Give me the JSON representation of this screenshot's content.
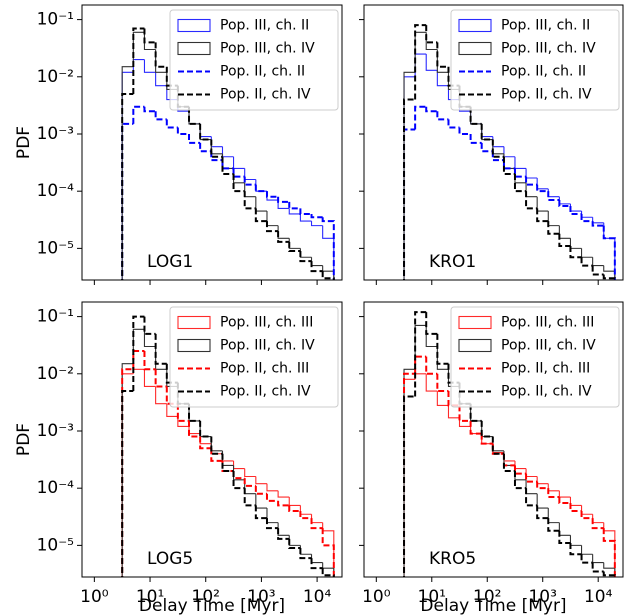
{
  "chart_data": [
    {
      "type": "histogram",
      "annotation": "LOG1",
      "ylabel": "PDF",
      "log_x": true,
      "log_y": true,
      "legend": "upper right",
      "bins": [
        3.16,
        5.01,
        7.94,
        12.6,
        20.0,
        31.6,
        50.1,
        79.4,
        126,
        200,
        316,
        501,
        794,
        1259,
        1995,
        3162,
        5012,
        7943,
        12589,
        19953
      ],
      "xlim": [
        0.6,
        28000
      ],
      "ylim": [
        2.8e-06,
        0.18
      ],
      "xticks": [
        1,
        10,
        100,
        1000,
        10000
      ],
      "yticks": [
        {
          "value": 0.1,
          "label": "10⁻¹"
        },
        {
          "value": 0.01,
          "label": "10⁻²"
        },
        {
          "value": 0.001,
          "label": "10⁻³"
        },
        {
          "value": 0.0001,
          "label": "10⁻⁴"
        },
        {
          "value": 1e-05,
          "label": "10⁻⁵"
        }
      ],
      "series": [
        {
          "name": "Pop. III, ch. II",
          "color": "#2a2aff",
          "linestyle": "solid",
          "values": [
            0.012,
            0.02,
            0.012,
            0.007,
            0.004,
            0.0025,
            0.0015,
            0.0009,
            0.0006,
            0.0004,
            0.00025,
            0.00016,
            0.0001,
            7e-05,
            5e-05,
            4e-05,
            3e-05,
            2.5e-05,
            1.5e-05
          ]
        },
        {
          "name": "Pop. III, ch. IV",
          "color": "#333333",
          "linestyle": "solid",
          "values": [
            0.015,
            0.06,
            0.03,
            0.012,
            0.006,
            0.003,
            0.0015,
            0.0008,
            0.00045,
            0.00025,
            0.00014,
            8e-05,
            4.5e-05,
            2.5e-05,
            1.5e-05,
            1e-05,
            7e-06,
            5e-06,
            4e-06
          ]
        },
        {
          "name": "Pop. II, ch. II",
          "color": "#0000ff",
          "linestyle": "dashed",
          "values": [
            0.0015,
            0.003,
            0.0025,
            0.0018,
            0.0013,
            0.001,
            0.0007,
            0.0005,
            0.00035,
            0.00025,
            0.00018,
            0.00013,
            0.0001,
            8e-05,
            6.5e-05,
            5e-05,
            4e-05,
            3.5e-05,
            3e-05
          ]
        },
        {
          "name": "Pop. II, ch. IV",
          "color": "#000000",
          "linestyle": "dashed",
          "values": [
            0.005,
            0.07,
            0.04,
            0.015,
            0.007,
            0.003,
            0.0015,
            0.0008,
            0.0004,
            0.0002,
            0.0001,
            5e-05,
            3e-05,
            2e-05,
            1.3e-05,
            9e-06,
            6e-06,
            4e-06,
            3e-06
          ]
        }
      ]
    },
    {
      "type": "histogram",
      "annotation": "KRO1",
      "log_x": true,
      "log_y": true,
      "legend": "upper right",
      "bins": [
        3.16,
        5.01,
        7.94,
        12.6,
        20.0,
        31.6,
        50.1,
        79.4,
        126,
        200,
        316,
        501,
        794,
        1259,
        1995,
        3162,
        5012,
        7943,
        12589,
        19953
      ],
      "xlim": [
        0.6,
        28000
      ],
      "ylim": [
        2.8e-06,
        0.18
      ],
      "xticks": [
        1,
        10,
        100,
        1000,
        10000
      ],
      "yticks": [
        0.1,
        0.01,
        0.001,
        0.0001,
        1e-05
      ],
      "series": [
        {
          "name": "Pop. III, ch. II",
          "color": "#2a2aff",
          "linestyle": "solid",
          "values": [
            0.01,
            0.025,
            0.013,
            0.007,
            0.004,
            0.0025,
            0.0015,
            0.0009,
            0.0006,
            0.0004,
            0.00025,
            0.00017,
            0.00011,
            8e-05,
            6e-05,
            4.5e-05,
            3.5e-05,
            2.8e-05,
            1.5e-05
          ]
        },
        {
          "name": "Pop. III, ch. IV",
          "color": "#333333",
          "linestyle": "solid",
          "values": [
            0.012,
            0.06,
            0.03,
            0.012,
            0.006,
            0.003,
            0.0015,
            0.0008,
            0.00045,
            0.00025,
            0.00014,
            8e-05,
            4.5e-05,
            2.5e-05,
            1.5e-05,
            1e-05,
            7e-06,
            5e-06,
            4e-06
          ]
        },
        {
          "name": "Pop. II, ch. II",
          "color": "#0000ff",
          "linestyle": "dashed",
          "values": [
            0.0012,
            0.003,
            0.0025,
            0.0018,
            0.0013,
            0.001,
            0.0007,
            0.0005,
            0.00035,
            0.00025,
            0.00018,
            0.00013,
            0.0001,
            7e-05,
            5.5e-05,
            4e-05,
            3e-05,
            2.5e-05,
            1.5e-05
          ]
        },
        {
          "name": "Pop. II, ch. IV",
          "color": "#000000",
          "linestyle": "dashed",
          "values": [
            0.004,
            0.08,
            0.04,
            0.015,
            0.007,
            0.003,
            0.0015,
            0.0008,
            0.0004,
            0.0002,
            0.0001,
            5e-05,
            3e-05,
            1.8e-05,
            1.1e-05,
            7e-06,
            5e-06,
            3.5e-06,
            3e-06
          ]
        }
      ]
    },
    {
      "type": "histogram",
      "annotation": "LOG5",
      "ylabel": "PDF",
      "xlabel": "Delay Time [Myr]",
      "log_x": true,
      "log_y": true,
      "legend": "upper right",
      "bins": [
        3.16,
        5.01,
        7.94,
        12.6,
        20.0,
        31.6,
        50.1,
        79.4,
        126,
        200,
        316,
        501,
        794,
        1259,
        1995,
        3162,
        5012,
        7943,
        12589,
        19953
      ],
      "xlim": [
        0.6,
        28000
      ],
      "ylim": [
        2.8e-06,
        0.18
      ],
      "xticks": [
        {
          "value": 1,
          "label": "10⁰"
        },
        {
          "value": 10,
          "label": "10¹"
        },
        {
          "value": 100,
          "label": "10²"
        },
        {
          "value": 1000,
          "label": "10³"
        },
        {
          "value": 10000,
          "label": "10⁴"
        }
      ],
      "yticks": [
        {
          "value": 0.1,
          "label": "10⁻¹"
        },
        {
          "value": 0.01,
          "label": "10⁻²"
        },
        {
          "value": 0.001,
          "label": "10⁻³"
        },
        {
          "value": 0.0001,
          "label": "10⁻⁴"
        },
        {
          "value": 1e-05,
          "label": "10⁻⁵"
        }
      ],
      "series": [
        {
          "name": "Pop. III, ch. III",
          "color": "#ff2a2a",
          "linestyle": "solid",
          "values": [
            0.01,
            0.012,
            0.006,
            0.003,
            0.0018,
            0.0012,
            0.0009,
            0.0006,
            0.0004,
            0.0003,
            0.00022,
            0.00016,
            0.00012,
            9e-05,
            7e-05,
            5e-05,
            3.5e-05,
            2.5e-05,
            1.8e-05
          ]
        },
        {
          "name": "Pop. III, ch. IV",
          "color": "#333333",
          "linestyle": "solid",
          "values": [
            0.015,
            0.06,
            0.03,
            0.012,
            0.006,
            0.003,
            0.0015,
            0.0008,
            0.00045,
            0.00025,
            0.00014,
            8e-05,
            4.5e-05,
            2.5e-05,
            1.5e-05,
            1e-05,
            7e-06,
            5e-06,
            4e-06
          ]
        },
        {
          "name": "Pop. II, ch. III",
          "color": "#ff0000",
          "linestyle": "dashed",
          "values": [
            0.012,
            0.025,
            0.012,
            0.006,
            0.003,
            0.0015,
            0.0008,
            0.0005,
            0.0003,
            0.0002,
            0.00015,
            0.00011,
            8e-05,
            6e-05,
            5e-05,
            4e-05,
            3e-05,
            2e-05,
            1e-05
          ]
        },
        {
          "name": "Pop. II, ch. IV",
          "color": "#000000",
          "linestyle": "dashed",
          "values": [
            0.005,
            0.1,
            0.05,
            0.015,
            0.007,
            0.003,
            0.0015,
            0.0008,
            0.0004,
            0.0002,
            0.0001,
            5e-05,
            3e-05,
            2e-05,
            1.3e-05,
            9e-06,
            6e-06,
            4e-06,
            3e-06
          ]
        }
      ]
    },
    {
      "type": "histogram",
      "annotation": "KRO5",
      "xlabel": "Delay Time [Myr]",
      "log_x": true,
      "log_y": true,
      "legend": "upper right",
      "bins": [
        3.16,
        5.01,
        7.94,
        12.6,
        20.0,
        31.6,
        50.1,
        79.4,
        126,
        200,
        316,
        501,
        794,
        1259,
        1995,
        3162,
        5012,
        7943,
        12589,
        19953
      ],
      "xlim": [
        0.6,
        28000
      ],
      "ylim": [
        2.8e-06,
        0.18
      ],
      "xticks": [
        {
          "value": 1,
          "label": "10⁰"
        },
        {
          "value": 10,
          "label": "10¹"
        },
        {
          "value": 100,
          "label": "10²"
        },
        {
          "value": 1000,
          "label": "10³"
        },
        {
          "value": 10000,
          "label": "10⁴"
        }
      ],
      "yticks": [
        0.1,
        0.01,
        0.001,
        0.0001,
        1e-05
      ],
      "series": [
        {
          "name": "Pop. III, ch. III",
          "color": "#ff2a2a",
          "linestyle": "solid",
          "values": [
            0.008,
            0.01,
            0.005,
            0.0028,
            0.0017,
            0.0012,
            0.0009,
            0.0006,
            0.00042,
            0.0003,
            0.00022,
            0.00016,
            0.00012,
            9e-05,
            7e-05,
            5e-05,
            3.5e-05,
            2.5e-05,
            1.8e-05
          ]
        },
        {
          "name": "Pop. III, ch. IV",
          "color": "#333333",
          "linestyle": "solid",
          "values": [
            0.012,
            0.07,
            0.03,
            0.012,
            0.006,
            0.003,
            0.0015,
            0.0008,
            0.00045,
            0.00025,
            0.00014,
            8e-05,
            4.5e-05,
            2.5e-05,
            1.5e-05,
            1e-05,
            7e-06,
            5e-06,
            4e-06
          ]
        },
        {
          "name": "Pop. II, ch. III",
          "color": "#ff0000",
          "linestyle": "dashed",
          "values": [
            0.01,
            0.02,
            0.01,
            0.005,
            0.0028,
            0.0015,
            0.0009,
            0.0006,
            0.0004,
            0.00025,
            0.00018,
            0.00013,
            0.0001,
            7e-05,
            5.5e-05,
            4e-05,
            3e-05,
            2e-05,
            1.2e-05
          ]
        },
        {
          "name": "Pop. II, ch. IV",
          "color": "#000000",
          "linestyle": "dashed",
          "values": [
            0.004,
            0.12,
            0.05,
            0.015,
            0.007,
            0.003,
            0.0015,
            0.0008,
            0.0004,
            0.0002,
            0.0001,
            5e-05,
            3e-05,
            1.8e-05,
            1.1e-05,
            7e-06,
            5e-06,
            3.5e-06,
            3e-06
          ]
        }
      ]
    }
  ]
}
